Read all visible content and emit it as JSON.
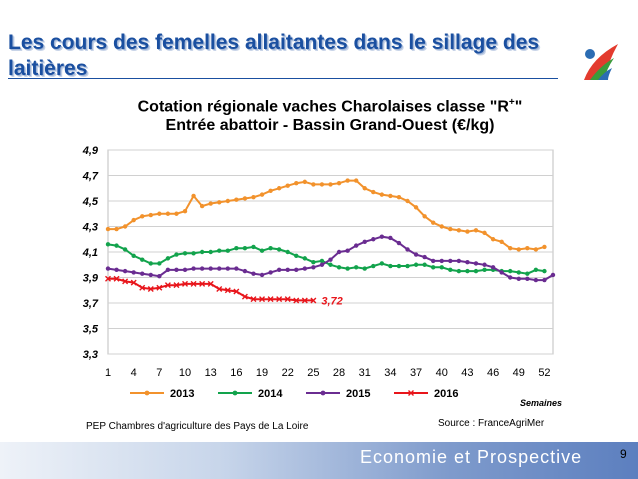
{
  "slide": {
    "title": "Les cours des femelles allaitantes dans le sillage des laitières",
    "page_number": "9",
    "footer_left": "PEP Chambres d'agriculture des Pays de La Loire",
    "footer_right": "Source : FranceAgriMer",
    "banner": "Economie et Prospective",
    "accent_color": "#1a4fa0"
  },
  "chart_data": {
    "type": "line",
    "title_line1": "Cotation régionale vaches Charolaises classe \"R",
    "title_sup": "+",
    "title_line1_end": "\"",
    "title_line2": "Entrée abattoir - Bassin Grand-Ouest (€/kg)",
    "xlabel": "Semaines",
    "ylim": [
      3.3,
      4.9
    ],
    "xlim": [
      1,
      53
    ],
    "y_ticks": [
      "3,3",
      "3,5",
      "3,7",
      "3,9",
      "4,1",
      "4,3",
      "4,5",
      "4,7",
      "4,9"
    ],
    "y_tick_values": [
      3.3,
      3.5,
      3.7,
      3.9,
      4.1,
      4.3,
      4.5,
      4.7,
      4.9
    ],
    "x_ticks": [
      "1",
      "4",
      "7",
      "10",
      "13",
      "16",
      "19",
      "22",
      "25",
      "28",
      "31",
      "34",
      "37",
      "40",
      "43",
      "46",
      "49",
      "52"
    ],
    "x_tick_values": [
      1,
      4,
      7,
      10,
      13,
      16,
      19,
      22,
      25,
      28,
      31,
      34,
      37,
      40,
      43,
      46,
      49,
      52
    ],
    "grid": "horizontal",
    "legend_position": "bottom",
    "annotation": {
      "text": "3,72",
      "x": 25,
      "y": 3.72,
      "color": "#e8151b"
    },
    "series": [
      {
        "name": "2013",
        "color": "#f2922c",
        "x": [
          1,
          2,
          3,
          4,
          5,
          6,
          7,
          8,
          9,
          10,
          11,
          12,
          13,
          14,
          15,
          16,
          17,
          18,
          19,
          20,
          21,
          22,
          23,
          24,
          25,
          26,
          27,
          28,
          29,
          30,
          31,
          32,
          33,
          34,
          35,
          36,
          37,
          38,
          39,
          40,
          41,
          42,
          43,
          44,
          45,
          46,
          47,
          48,
          49,
          50,
          51,
          52
        ],
        "values": [
          4.28,
          4.28,
          4.3,
          4.35,
          4.38,
          4.39,
          4.4,
          4.4,
          4.4,
          4.42,
          4.54,
          4.46,
          4.48,
          4.49,
          4.5,
          4.51,
          4.52,
          4.53,
          4.55,
          4.58,
          4.6,
          4.62,
          4.64,
          4.65,
          4.63,
          4.63,
          4.63,
          4.64,
          4.66,
          4.66,
          4.6,
          4.57,
          4.55,
          4.54,
          4.53,
          4.5,
          4.45,
          4.38,
          4.33,
          4.3,
          4.28,
          4.27,
          4.26,
          4.27,
          4.25,
          4.2,
          4.18,
          4.13,
          4.12,
          4.13,
          4.12,
          4.14
        ]
      },
      {
        "name": "2014",
        "color": "#12a34c",
        "x": [
          1,
          2,
          3,
          4,
          5,
          6,
          7,
          8,
          9,
          10,
          11,
          12,
          13,
          14,
          15,
          16,
          17,
          18,
          19,
          20,
          21,
          22,
          23,
          24,
          25,
          26,
          27,
          28,
          29,
          30,
          31,
          32,
          33,
          34,
          35,
          36,
          37,
          38,
          39,
          40,
          41,
          42,
          43,
          44,
          45,
          46,
          47,
          48,
          49,
          50,
          51,
          52
        ],
        "values": [
          4.16,
          4.15,
          4.12,
          4.07,
          4.04,
          4.01,
          4.01,
          4.05,
          4.08,
          4.09,
          4.09,
          4.1,
          4.1,
          4.11,
          4.11,
          4.13,
          4.13,
          4.14,
          4.11,
          4.13,
          4.12,
          4.1,
          4.07,
          4.05,
          4.02,
          4.03,
          4.0,
          3.98,
          3.97,
          3.98,
          3.97,
          3.99,
          4.01,
          3.99,
          3.99,
          3.99,
          4.0,
          4.0,
          3.98,
          3.98,
          3.96,
          3.95,
          3.95,
          3.95,
          3.96,
          3.96,
          3.95,
          3.95,
          3.94,
          3.93,
          3.96,
          3.95
        ]
      },
      {
        "name": "2015",
        "color": "#6a2c91",
        "x": [
          1,
          2,
          3,
          4,
          5,
          6,
          7,
          8,
          9,
          10,
          11,
          12,
          13,
          14,
          15,
          16,
          17,
          18,
          19,
          20,
          21,
          22,
          23,
          24,
          25,
          26,
          27,
          28,
          29,
          30,
          31,
          32,
          33,
          34,
          35,
          36,
          37,
          38,
          39,
          40,
          41,
          42,
          43,
          44,
          45,
          46,
          47,
          48,
          49,
          50,
          51,
          52,
          53
        ],
        "values": [
          3.97,
          3.96,
          3.95,
          3.94,
          3.93,
          3.92,
          3.91,
          3.96,
          3.96,
          3.96,
          3.97,
          3.97,
          3.97,
          3.97,
          3.97,
          3.97,
          3.95,
          3.93,
          3.92,
          3.94,
          3.96,
          3.96,
          3.96,
          3.97,
          3.98,
          4.0,
          4.04,
          4.1,
          4.11,
          4.15,
          4.18,
          4.2,
          4.22,
          4.21,
          4.17,
          4.12,
          4.08,
          4.06,
          4.03,
          4.03,
          4.03,
          4.03,
          4.02,
          4.01,
          4.0,
          3.98,
          3.94,
          3.9,
          3.89,
          3.89,
          3.88,
          3.88,
          3.92
        ]
      },
      {
        "name": "2016",
        "color": "#e8151b",
        "x": [
          1,
          2,
          3,
          4,
          5,
          6,
          7,
          8,
          9,
          10,
          11,
          12,
          13,
          14,
          15,
          16,
          17,
          18,
          19,
          20,
          21,
          22,
          23,
          24,
          25
        ],
        "values": [
          3.89,
          3.89,
          3.87,
          3.86,
          3.82,
          3.81,
          3.82,
          3.84,
          3.84,
          3.85,
          3.85,
          3.85,
          3.85,
          3.81,
          3.8,
          3.79,
          3.75,
          3.73,
          3.73,
          3.73,
          3.73,
          3.73,
          3.72,
          3.72,
          3.72
        ]
      }
    ]
  }
}
